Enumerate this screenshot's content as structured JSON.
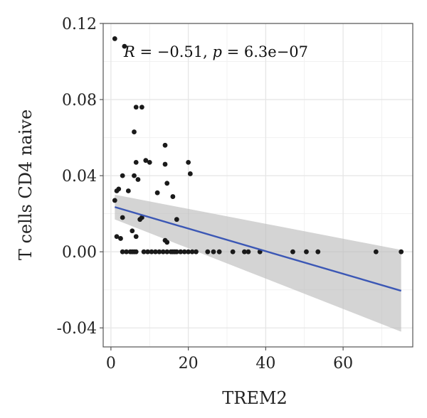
{
  "chart_data": {
    "type": "scatter",
    "title": "",
    "xlabel": "TREM2",
    "ylabel": "T cells CD4 naive",
    "xlim": [
      -2,
      78
    ],
    "ylim": [
      -0.05,
      0.12
    ],
    "x_ticks": [
      {
        "value": 0,
        "label": "0"
      },
      {
        "value": 20,
        "label": "20"
      },
      {
        "value": 40,
        "label": "40"
      },
      {
        "value": 60,
        "label": "60"
      }
    ],
    "y_ticks": [
      {
        "value": 0.12,
        "label": "0.12"
      },
      {
        "value": 0.08,
        "label": "0.08"
      },
      {
        "value": 0.04,
        "label": "0.04"
      },
      {
        "value": 0.0,
        "label": "0.00"
      },
      {
        "value": -0.04,
        "label": "-0.04"
      }
    ],
    "grid": true,
    "annotation": {
      "r_symbol": "R",
      "r_text": " = −0.51, ",
      "p_symbol": "p",
      "p_text": " = 6.3e−07"
    },
    "regression": {
      "x_start": 1,
      "y_start": 0.0235,
      "x_end": 75,
      "y_end": -0.0205,
      "ci_upper_start": 0.03,
      "ci_lower_start": 0.017,
      "ci_upper_end": 0.001,
      "ci_lower_end": -0.042
    },
    "points": [
      [
        1,
        0.112
      ],
      [
        3.5,
        0.108
      ],
      [
        6.5,
        0.076
      ],
      [
        8,
        0.076
      ],
      [
        6,
        0.063
      ],
      [
        14,
        0.056
      ],
      [
        9,
        0.048
      ],
      [
        10,
        0.047
      ],
      [
        20,
        0.047
      ],
      [
        6.5,
        0.047
      ],
      [
        14,
        0.046
      ],
      [
        3,
        0.04
      ],
      [
        6,
        0.04
      ],
      [
        20.5,
        0.041
      ],
      [
        7,
        0.038
      ],
      [
        14.5,
        0.036
      ],
      [
        2,
        0.033
      ],
      [
        1.5,
        0.032
      ],
      [
        4.5,
        0.032
      ],
      [
        12,
        0.031
      ],
      [
        16,
        0.029
      ],
      [
        1,
        0.027
      ],
      [
        3,
        0.018
      ],
      [
        8,
        0.018
      ],
      [
        7.5,
        0.017
      ],
      [
        17,
        0.017
      ],
      [
        5.5,
        0.011
      ],
      [
        1.5,
        0.008
      ],
      [
        6.5,
        0.008
      ],
      [
        2.5,
        0.007
      ],
      [
        14,
        0.006
      ],
      [
        14.5,
        0.005
      ],
      [
        3,
        0.0
      ],
      [
        4,
        0.0
      ],
      [
        5,
        0.0
      ],
      [
        5.5,
        0.0
      ],
      [
        6,
        0.0
      ],
      [
        6.5,
        0.0
      ],
      [
        8.5,
        0.0
      ],
      [
        9.5,
        0.0
      ],
      [
        10.5,
        0.0
      ],
      [
        11.5,
        0.0
      ],
      [
        12.5,
        0.0
      ],
      [
        13.5,
        0.0
      ],
      [
        14.5,
        0.0
      ],
      [
        15.5,
        0.0
      ],
      [
        16,
        0.0
      ],
      [
        16.5,
        0.0
      ],
      [
        17,
        0.0
      ],
      [
        18,
        0.0
      ],
      [
        19,
        0.0
      ],
      [
        20,
        0.0
      ],
      [
        21,
        0.0
      ],
      [
        22,
        0.0
      ],
      [
        25,
        0.0
      ],
      [
        26.5,
        0.0
      ],
      [
        28,
        0.0
      ],
      [
        31.5,
        0.0
      ],
      [
        34.5,
        0.0
      ],
      [
        35.5,
        0.0
      ],
      [
        38.5,
        0.0
      ],
      [
        47,
        0.0
      ],
      [
        50.5,
        0.0
      ],
      [
        53.5,
        0.0
      ],
      [
        68.5,
        0.0
      ],
      [
        75,
        0.0
      ]
    ]
  }
}
